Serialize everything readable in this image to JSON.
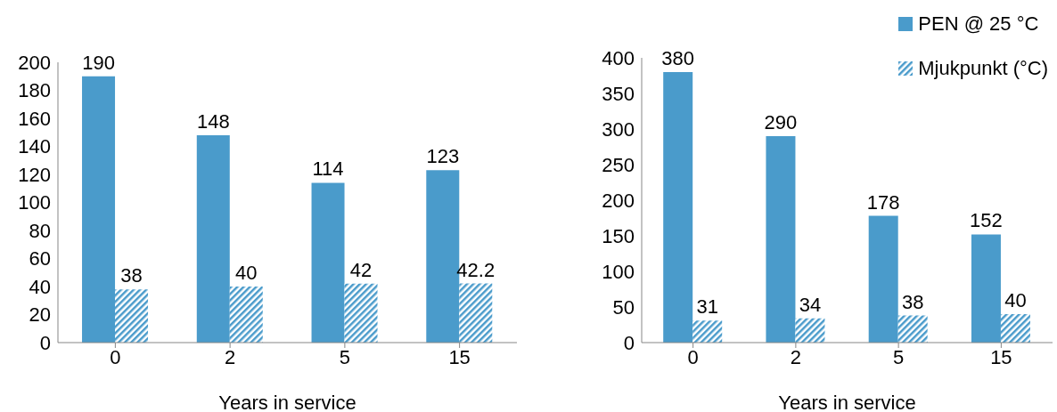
{
  "chart_data": [
    {
      "type": "bar",
      "xlabel": "Years in service",
      "categories": [
        "0",
        "2",
        "5",
        "15"
      ],
      "series": [
        {
          "color": "#4a9bcb",
          "values": [
            190,
            148,
            114,
            123
          ]
        },
        {
          "color": "#4a9bcb",
          "values": [
            38,
            40,
            42,
            42.2
          ]
        }
      ],
      "ylim": [
        0,
        200
      ],
      "yticks": [
        0,
        20,
        40,
        60,
        80,
        100,
        120,
        140,
        160,
        180,
        200
      ],
      "data_labels": true,
      "grid": false,
      "legend": false
    },
    {
      "type": "bar",
      "xlabel": "Years in service",
      "categories": [
        "0",
        "2",
        "5",
        "15"
      ],
      "series": [
        {
          "name": "PEN @ 25 °C",
          "color": "#4a9bcb",
          "values": [
            380,
            290,
            178,
            152
          ]
        },
        {
          "name": "Mjukpunkt (°C)",
          "color": "#4a9bcb",
          "values": [
            31,
            34,
            38,
            40
          ]
        }
      ],
      "ylim": [
        0,
        400
      ],
      "yticks": [
        0,
        50,
        100,
        150,
        200,
        250,
        300,
        350,
        400
      ],
      "data_labels": true,
      "grid": false,
      "legend": "top right"
    }
  ]
}
